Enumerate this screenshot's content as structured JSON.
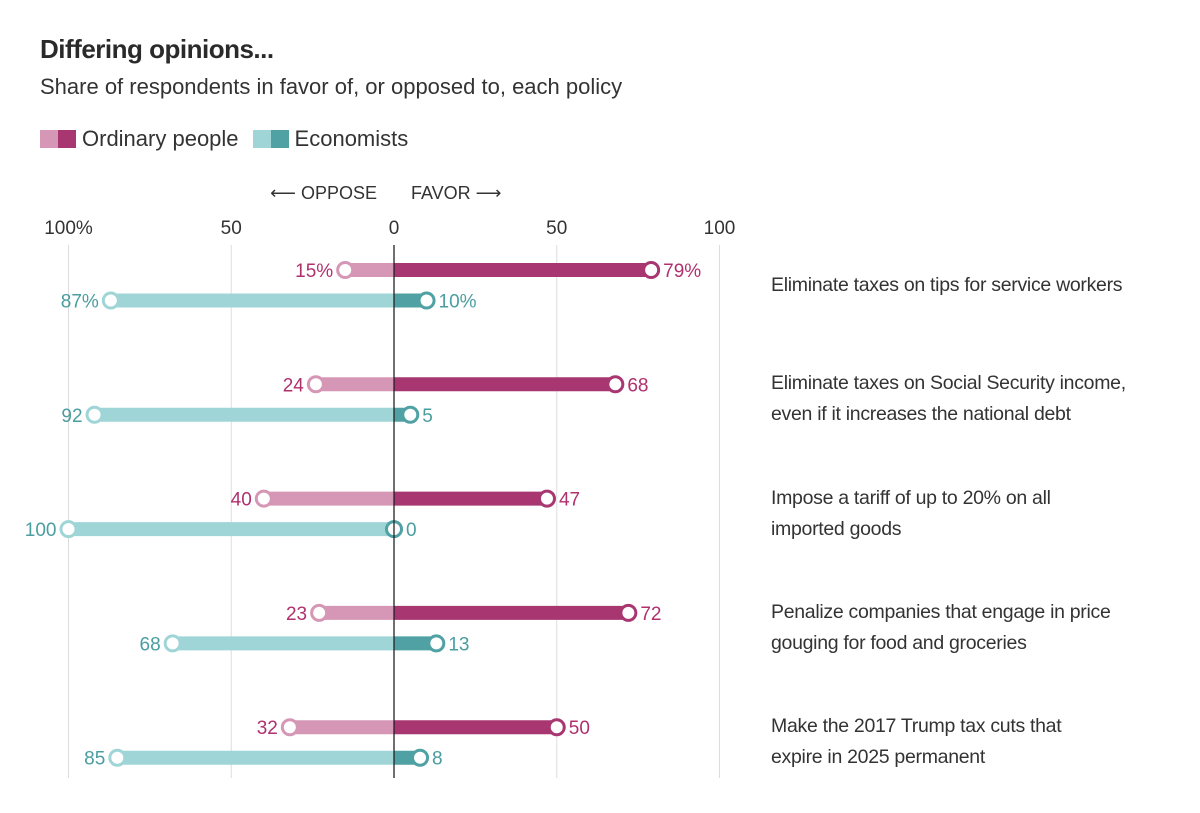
{
  "chart_data": {
    "type": "bar",
    "subtype": "diverging-dumbbell",
    "title": "Differing opinions...",
    "subtitle": "Share of respondents in favor of, or opposed to, each policy",
    "direction_labels": {
      "oppose": "OPPOSE",
      "favor": "FAVOR"
    },
    "xlim": [
      -100,
      100
    ],
    "ticks": [
      {
        "value": -100,
        "label": "100%"
      },
      {
        "value": -50,
        "label": "50"
      },
      {
        "value": 0,
        "label": "0"
      },
      {
        "value": 50,
        "label": "50"
      },
      {
        "value": 100,
        "label": "100"
      }
    ],
    "grid": true,
    "legend_position": "top-left",
    "categories": [
      "Eliminate taxes on tips for service workers",
      "Eliminate taxes on Social Security income, even if it increases the national debt",
      "Impose a tariff of up to 20% on all imported goods",
      "Penalize companies that engage in price gouging for food and groceries",
      "Make the 2017 Trump tax cuts that expire in 2025 permanent"
    ],
    "category_lines": [
      [
        "Eliminate taxes on tips for service workers"
      ],
      [
        "Eliminate taxes on Social Security income,",
        "even if it increases the national debt"
      ],
      [
        "Impose a tariff of up to 20% on all",
        "imported goods"
      ],
      [
        "Penalize companies that engage in price",
        "gouging for food and groceries"
      ],
      [
        "Make the 2017 Trump tax cuts that",
        "expire in 2025 permanent"
      ]
    ],
    "series": [
      {
        "name": "Ordinary people",
        "oppose": [
          15,
          24,
          40,
          23,
          32
        ],
        "favor": [
          79,
          68,
          47,
          72,
          50
        ],
        "oppose_labels": [
          "15%",
          "24",
          "40",
          "23",
          "32"
        ],
        "favor_labels": [
          "79%",
          "68",
          "47",
          "72",
          "50"
        ],
        "color_favor": "#A83771",
        "color_oppose": "#D597B5",
        "label_color": "#B0306E"
      },
      {
        "name": "Economists",
        "oppose": [
          87,
          92,
          100,
          68,
          85
        ],
        "favor": [
          10,
          5,
          0,
          13,
          8
        ],
        "oppose_labels": [
          "87%",
          "92",
          "100",
          "68",
          "85"
        ],
        "favor_labels": [
          "10%",
          "5",
          "0",
          "13",
          "8"
        ],
        "color_favor": "#4FA1A3",
        "color_oppose": "#A0D5D8",
        "label_color": "#4A9EA0"
      }
    ]
  }
}
